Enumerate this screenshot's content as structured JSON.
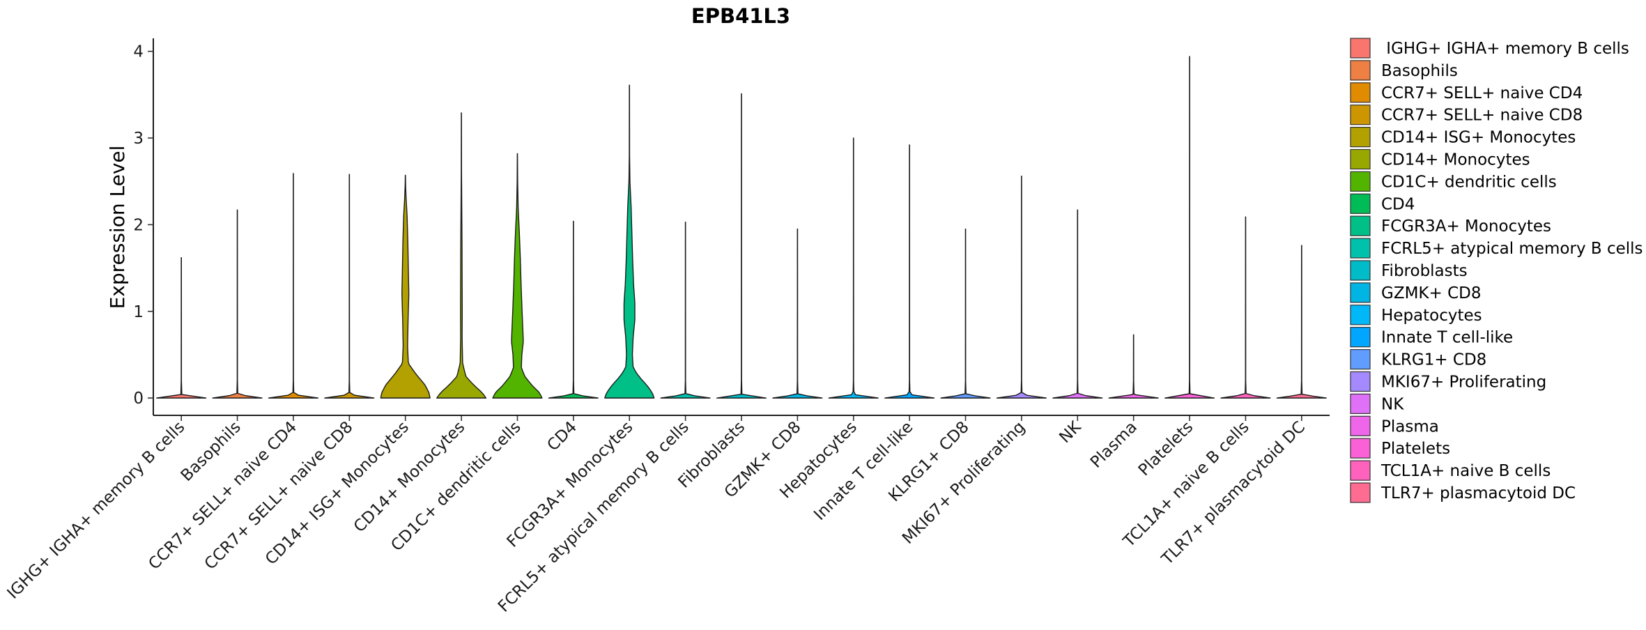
{
  "chart_data": {
    "type": "violin",
    "title": "EPB41L3",
    "xlabel": "",
    "ylabel": "Expression Level",
    "ylim": [
      -0.2,
      4.15
    ],
    "yticks": [
      0,
      1,
      2,
      3,
      4
    ],
    "grid": false,
    "legend_position": "right",
    "series": [
      {
        "name": "IGHG+ IGHA+ memory B cells",
        "label": "IGHG+ IGHA+ memory B cells",
        "legend_label": " IGHG+ IGHA+ memory B cells",
        "color": "#F8766D",
        "max": 1.62,
        "profile": [
          [
            0,
            1
          ],
          [
            0.04,
            0.02
          ],
          [
            0.2,
            0.005
          ],
          [
            1.62,
            0.003
          ]
        ]
      },
      {
        "name": "Basophils",
        "label": "Basophils",
        "legend_label": "Basophils",
        "color": "#EE8043",
        "max": 2.17,
        "profile": [
          [
            0,
            1
          ],
          [
            0.04,
            0.02
          ],
          [
            0.2,
            0.005
          ],
          [
            2.17,
            0.003
          ]
        ]
      },
      {
        "name": "CCR7+ SELL+ naive CD4",
        "label": "CCR7+ SELL+ naive CD4",
        "legend_label": "CCR7+ SELL+ naive CD4",
        "color": "#E08B00",
        "max": 2.59,
        "profile": [
          [
            0,
            1
          ],
          [
            0.04,
            0.02
          ],
          [
            0.2,
            0.005
          ],
          [
            2.59,
            0.003
          ]
        ]
      },
      {
        "name": "CCR7+ SELL+ naive CD8",
        "label": "CCR7+ SELL+ naive CD8",
        "legend_label": "CCR7+ SELL+ naive CD8",
        "color": "#CD9600",
        "max": 2.58,
        "profile": [
          [
            0,
            1
          ],
          [
            0.04,
            0.02
          ],
          [
            0.2,
            0.005
          ],
          [
            2.58,
            0.003
          ]
        ]
      },
      {
        "name": "CD14+ ISG+ Monocytes",
        "label": "CD14+ ISG+ Monocytes",
        "legend_label": "CD14+ ISG+ Monocytes",
        "color": "#B2A100",
        "max": 2.57,
        "profile": [
          [
            0,
            1
          ],
          [
            0.06,
            0.96
          ],
          [
            0.15,
            0.8
          ],
          [
            0.28,
            0.42
          ],
          [
            0.4,
            0.12
          ],
          [
            0.6,
            0.09
          ],
          [
            0.9,
            0.11
          ],
          [
            1.2,
            0.14
          ],
          [
            1.5,
            0.12
          ],
          [
            1.8,
            0.1
          ],
          [
            2.1,
            0.07
          ],
          [
            2.3,
            0.03
          ],
          [
            2.45,
            0.01
          ],
          [
            2.57,
            0.003
          ]
        ]
      },
      {
        "name": "CD14+ Monocytes",
        "label": "CD14+ Monocytes",
        "legend_label": "CD14+ Monocytes",
        "color": "#99A800",
        "max": 3.29,
        "profile": [
          [
            0,
            1
          ],
          [
            0.06,
            0.85
          ],
          [
            0.15,
            0.5
          ],
          [
            0.25,
            0.18
          ],
          [
            0.4,
            0.05
          ],
          [
            0.7,
            0.03
          ],
          [
            1.0,
            0.035
          ],
          [
            1.4,
            0.03
          ],
          [
            1.8,
            0.025
          ],
          [
            2.2,
            0.015
          ],
          [
            2.6,
            0.006
          ],
          [
            3.29,
            0.003
          ]
        ]
      },
      {
        "name": "CD1C+ dendritic cells",
        "label": "CD1C+ dendritic cells",
        "legend_label": "CD1C+ dendritic cells",
        "color": "#53B400",
        "max": 2.82,
        "profile": [
          [
            0,
            1
          ],
          [
            0.06,
            0.9
          ],
          [
            0.15,
            0.58
          ],
          [
            0.25,
            0.3
          ],
          [
            0.35,
            0.16
          ],
          [
            0.5,
            0.18
          ],
          [
            0.65,
            0.24
          ],
          [
            0.8,
            0.22
          ],
          [
            1.0,
            0.19
          ],
          [
            1.3,
            0.15
          ],
          [
            1.6,
            0.12
          ],
          [
            1.9,
            0.08
          ],
          [
            2.2,
            0.03
          ],
          [
            2.5,
            0.01
          ],
          [
            2.82,
            0.003
          ]
        ]
      },
      {
        "name": "CD4",
        "label": "CD4",
        "legend_label": "CD4",
        "color": "#00BC56",
        "max": 2.04,
        "profile": [
          [
            0,
            1
          ],
          [
            0.04,
            0.02
          ],
          [
            0.2,
            0.005
          ],
          [
            2.04,
            0.003
          ]
        ]
      },
      {
        "name": "FCGR3A+ Monocytes",
        "label": "FCGR3A+ Monocytes",
        "legend_label": "FCGR3A+ Monocytes",
        "color": "#00C087",
        "max": 3.61,
        "profile": [
          [
            0,
            1
          ],
          [
            0.06,
            0.93
          ],
          [
            0.15,
            0.7
          ],
          [
            0.25,
            0.38
          ],
          [
            0.35,
            0.15
          ],
          [
            0.5,
            0.12
          ],
          [
            0.7,
            0.15
          ],
          [
            0.9,
            0.22
          ],
          [
            1.1,
            0.22
          ],
          [
            1.3,
            0.17
          ],
          [
            1.6,
            0.13
          ],
          [
            1.9,
            0.1
          ],
          [
            2.2,
            0.07
          ],
          [
            2.5,
            0.02
          ],
          [
            2.8,
            0.006
          ],
          [
            3.61,
            0.003
          ]
        ]
      },
      {
        "name": "FCRL5+ atypical memory B cells",
        "label": "FCRL5+ atypical memory B cells",
        "legend_label": "FCRL5+ atypical memory B cells",
        "color": "#00C1AB",
        "max": 2.03,
        "profile": [
          [
            0,
            1
          ],
          [
            0.04,
            0.02
          ],
          [
            0.2,
            0.005
          ],
          [
            2.03,
            0.003
          ]
        ]
      },
      {
        "name": "Fibroblasts",
        "label": "Fibroblasts",
        "legend_label": "Fibroblasts",
        "color": "#00BBC8",
        "max": 3.51,
        "profile": [
          [
            0,
            1
          ],
          [
            0.04,
            0.02
          ],
          [
            0.2,
            0.005
          ],
          [
            3.51,
            0.003
          ]
        ]
      },
      {
        "name": "GZMK+ CD8",
        "label": "GZMK+ CD8",
        "legend_label": "GZMK+ CD8",
        "color": "#00B4E4",
        "max": 1.95,
        "profile": [
          [
            0,
            1
          ],
          [
            0.04,
            0.02
          ],
          [
            0.2,
            0.005
          ],
          [
            1.95,
            0.003
          ]
        ]
      },
      {
        "name": "Hepatocytes",
        "label": "Hepatocytes",
        "legend_label": "Hepatocytes",
        "color": "#00B7F8",
        "max": 3.0,
        "profile": [
          [
            0,
            1
          ],
          [
            0.04,
            0.02
          ],
          [
            0.2,
            0.005
          ],
          [
            3.0,
            0.003
          ]
        ]
      },
      {
        "name": "Innate T cell-like",
        "label": "Innate T cell-like",
        "legend_label": "Innate T cell-like",
        "color": "#00A6FF",
        "max": 2.92,
        "profile": [
          [
            0,
            1
          ],
          [
            0.04,
            0.02
          ],
          [
            0.2,
            0.005
          ],
          [
            2.92,
            0.003
          ]
        ]
      },
      {
        "name": "KLRG1+ CD8",
        "label": "KLRG1+ CD8",
        "legend_label": "KLRG1+ CD8",
        "color": "#619CFF",
        "max": 1.95,
        "profile": [
          [
            0,
            1
          ],
          [
            0.04,
            0.02
          ],
          [
            0.2,
            0.005
          ],
          [
            1.95,
            0.003
          ]
        ]
      },
      {
        "name": "MKI67+ Proliferating",
        "label": "MKI67+ Proliferating",
        "legend_label": "MKI67+ Proliferating",
        "color": "#A58AFF",
        "max": 2.56,
        "profile": [
          [
            0,
            1
          ],
          [
            0.04,
            0.02
          ],
          [
            0.2,
            0.005
          ],
          [
            2.56,
            0.003
          ]
        ]
      },
      {
        "name": "NK",
        "label": "NK",
        "legend_label": "NK",
        "color": "#DF70F8",
        "max": 2.17,
        "profile": [
          [
            0,
            1
          ],
          [
            0.04,
            0.02
          ],
          [
            0.2,
            0.005
          ],
          [
            2.17,
            0.003
          ]
        ]
      },
      {
        "name": "Plasma",
        "label": "Plasma",
        "legend_label": "Plasma",
        "color": "#F066EA",
        "max": 0.73,
        "profile": [
          [
            0,
            1
          ],
          [
            0.04,
            0.02
          ],
          [
            0.2,
            0.005
          ],
          [
            0.73,
            0.003
          ]
        ]
      },
      {
        "name": "Platelets",
        "label": "Platelets",
        "legend_label": "Platelets",
        "color": "#FB61D7",
        "max": 3.94,
        "profile": [
          [
            0,
            1
          ],
          [
            0.04,
            0.02
          ],
          [
            0.2,
            0.005
          ],
          [
            3.94,
            0.003
          ]
        ]
      },
      {
        "name": "TCL1A+ naive B cells",
        "label": "TCL1A+ naive B cells",
        "legend_label": "TCL1A+ naive B cells",
        "color": "#FF62BC",
        "max": 2.09,
        "profile": [
          [
            0,
            1
          ],
          [
            0.04,
            0.02
          ],
          [
            0.2,
            0.005
          ],
          [
            2.09,
            0.003
          ]
        ]
      },
      {
        "name": "TLR7+ plasmacytoid DC",
        "label": "TLR7+ plasmacytoid DC",
        "legend_label": "TLR7+ plasmacytoid DC",
        "color": "#FF6C91",
        "max": 1.76,
        "profile": [
          [
            0,
            1
          ],
          [
            0.04,
            0.02
          ],
          [
            0.2,
            0.005
          ],
          [
            1.76,
            0.003
          ]
        ]
      }
    ]
  }
}
